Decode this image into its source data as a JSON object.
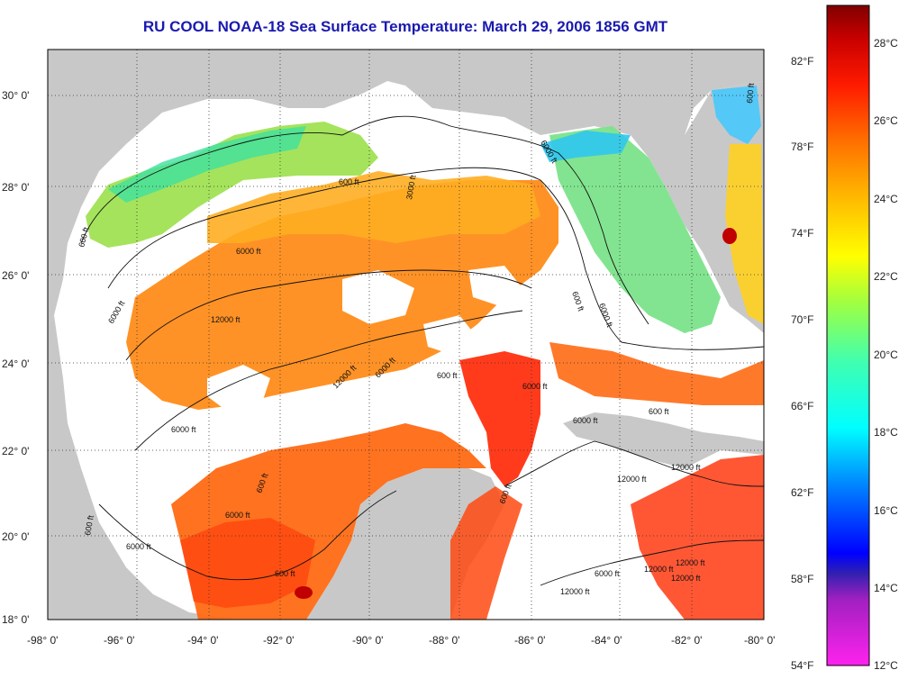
{
  "title": "RU COOL  NOAA-18  Sea Surface Temperature:  March 29, 2006 1856 GMT",
  "longitude_ticks": [
    "-98° 0'",
    "-96° 0'",
    "-94° 0'",
    "-92° 0'",
    "-90° 0'",
    "-88° 0'",
    "-86° 0'",
    "-84° 0'",
    "-82° 0'",
    "-80° 0'"
  ],
  "latitude_ticks": [
    "18° 0'",
    "20° 0'",
    "22° 0'",
    "24° 0'",
    "26° 0'",
    "28° 0'",
    "30° 0'"
  ],
  "fahrenheit_ticks": [
    "82°F",
    "78°F",
    "74°F",
    "70°F",
    "66°F",
    "62°F",
    "58°F",
    "54°F"
  ],
  "celsius_ticks": [
    "28°C",
    "26°C",
    "24°C",
    "22°C",
    "20°C",
    "18°C",
    "16°C",
    "14°C",
    "12°C"
  ],
  "colors": {
    "land": "#c8c8c8",
    "cloud": "#ffffff",
    "title": "#1a1ab0"
  },
  "contour_labels": [
    "600 ft",
    "600 ft",
    "600 ft",
    "600 ft",
    "600 ft",
    "600 ft",
    "600 ft",
    "600 ft",
    "600 ft",
    "600 ft",
    "6000 ft",
    "6000 ft",
    "6000 ft",
    "6000 ft",
    "6000 ft",
    "6000 ft",
    "6000 ft",
    "6000 ft",
    "6000 ft",
    "6000 ft",
    "6000 ft",
    "12000 ft",
    "12000 ft",
    "12000 ft",
    "12000 ft",
    "12000 ft",
    "12000 ft",
    "12000 ft",
    "12000 ft",
    "3000 ft"
  ]
}
